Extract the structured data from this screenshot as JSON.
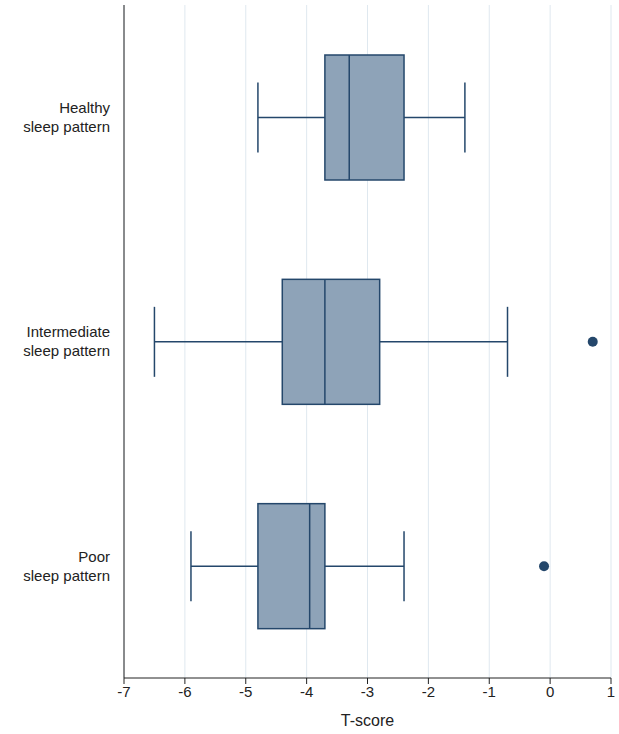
{
  "chart_data": {
    "type": "box",
    "orientation": "horizontal",
    "xlabel": "T-score",
    "categories": [
      "Healthy sleep pattern",
      "Intermediate sleep pattern",
      "Poor sleep pattern"
    ],
    "boxes": [
      {
        "min": -4.8,
        "q1": -3.7,
        "median": -3.3,
        "q3": -2.4,
        "max": -1.4,
        "outliers": []
      },
      {
        "min": -6.5,
        "q1": -4.4,
        "median": -3.7,
        "q3": -2.8,
        "max": -0.7,
        "outliers": [
          0.7
        ]
      },
      {
        "min": -5.9,
        "q1": -4.8,
        "median": -3.95,
        "q3": -3.7,
        "max": -2.4,
        "outliers": [
          -0.1
        ]
      }
    ],
    "color": "#8ea3b8",
    "xlim": [
      -7,
      1
    ],
    "xticks": [
      -7,
      -6,
      -5,
      -4,
      -3,
      -2,
      -1,
      0,
      1
    ],
    "grid": true
  }
}
